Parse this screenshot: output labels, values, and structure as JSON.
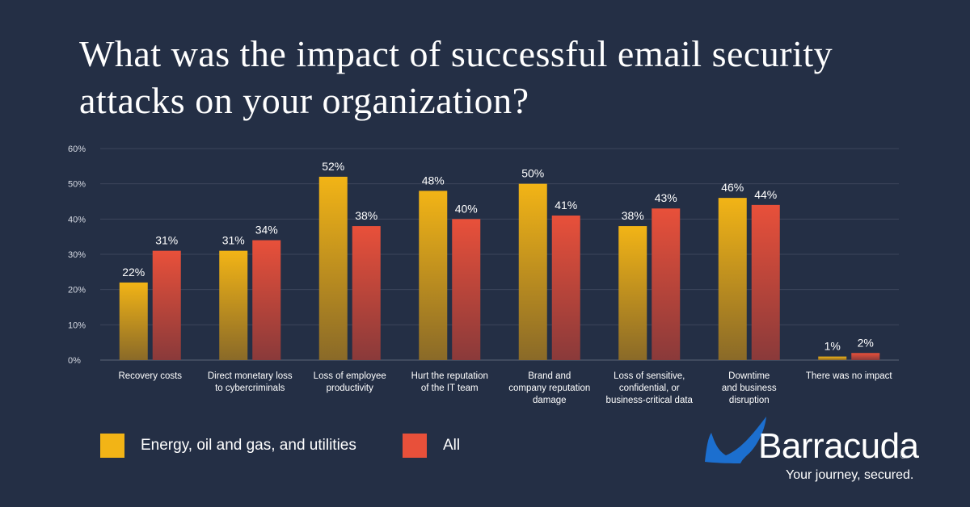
{
  "title": "What was the impact of successful email security attacks on your organization?",
  "chart_data": {
    "type": "bar",
    "title": "What was the impact of successful email security attacks on your organization?",
    "categories": [
      [
        "Recovery costs"
      ],
      [
        "Direct monetary loss",
        "to cybercriminals"
      ],
      [
        "Loss of employee",
        "productivity"
      ],
      [
        "Hurt the reputation",
        "of the IT team"
      ],
      [
        "Brand and",
        "company reputation",
        "damage"
      ],
      [
        "Loss of sensitive,",
        "confidential, or",
        "business-critical data"
      ],
      [
        "Downtime",
        "and business",
        "disruption"
      ],
      [
        "There was no impact"
      ]
    ],
    "series": [
      {
        "name": "Energy, oil and gas, and utilities",
        "values": [
          22,
          31,
          52,
          48,
          50,
          38,
          46,
          1
        ],
        "color": "#f2b416"
      },
      {
        "name": "All",
        "values": [
          31,
          34,
          38,
          40,
          41,
          43,
          44,
          2
        ],
        "color": "#e8503a"
      }
    ],
    "ylim": [
      0,
      60
    ],
    "yticks": [
      0,
      10,
      20,
      30,
      40,
      50,
      60
    ],
    "tick_suffix": "%",
    "grid": true,
    "legend_position": "bottom-left",
    "xlabel": "",
    "ylabel": ""
  },
  "legend": {
    "series1": "Energy, oil and gas, and utilities",
    "series2": "All"
  },
  "brand": {
    "name": "Barracuda",
    "registered": "®",
    "tagline": "Your journey, secured.",
    "logo_color": "#1c6fcf"
  }
}
